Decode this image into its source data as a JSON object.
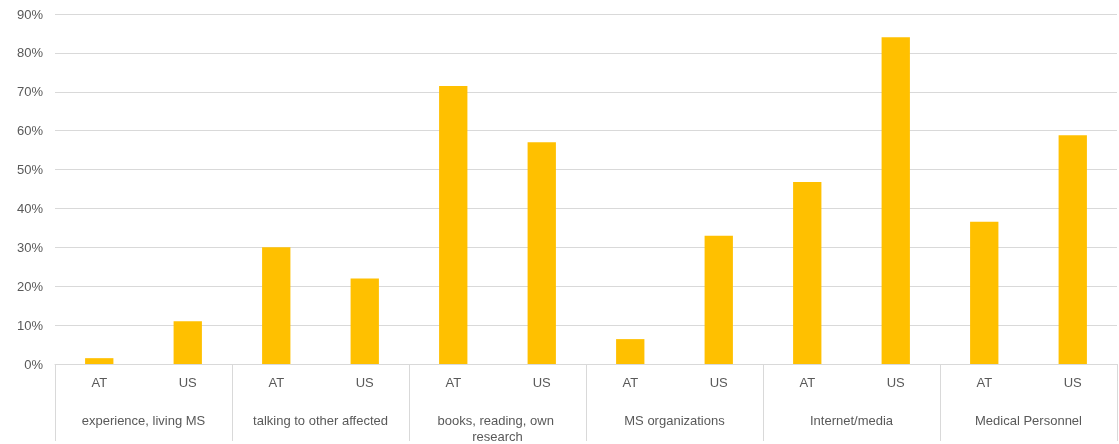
{
  "chart_data": {
    "type": "bar",
    "categories": [
      "AT",
      "US",
      "AT",
      "US",
      "AT",
      "US",
      "AT",
      "US",
      "AT",
      "US",
      "AT",
      "US"
    ],
    "values": [
      1.5,
      11,
      30,
      22,
      71.5,
      57,
      6.4,
      33,
      46.8,
      84,
      36.6,
      58.8
    ],
    "color": "#ffc000",
    "ylim": [
      0,
      90
    ],
    "yticks": [
      {
        "value": 0,
        "label": "0%"
      },
      {
        "value": 10,
        "label": "10%"
      },
      {
        "value": 20,
        "label": "20%"
      },
      {
        "value": 30,
        "label": "30%"
      },
      {
        "value": 40,
        "label": "40%"
      },
      {
        "value": 50,
        "label": "50%"
      },
      {
        "value": 60,
        "label": "60%"
      },
      {
        "value": 70,
        "label": "70%"
      },
      {
        "value": 80,
        "label": "80%"
      },
      {
        "value": 90,
        "label": "90%"
      }
    ],
    "grid": "y",
    "annotations": [
      "experience, living MS",
      "talking to other affected",
      "books, reading, own research",
      "MS organizations",
      "Internet/media",
      "Medical Personnel"
    ]
  }
}
